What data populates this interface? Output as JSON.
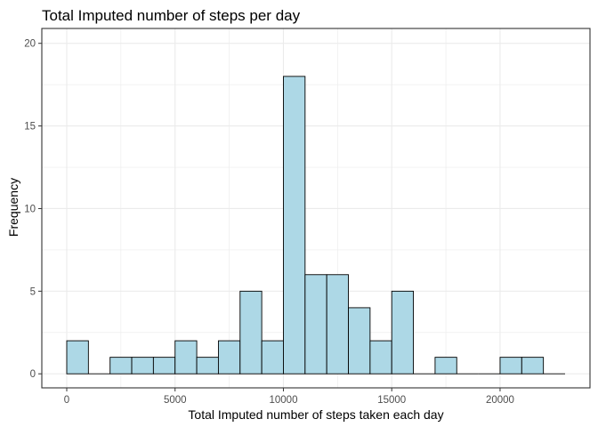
{
  "chart_data": {
    "type": "bar",
    "title": "Total Imputed number of steps per day",
    "xlabel": "Total Imputed number of steps taken each day",
    "ylabel": "Frequency",
    "xlim": [
      -1150,
      24150
    ],
    "ylim": [
      -0.85,
      20.9
    ],
    "x_ticks": [
      0,
      5000,
      10000,
      15000,
      20000
    ],
    "x_tick_labels": [
      "0",
      "5000",
      "10000",
      "15000",
      "20000"
    ],
    "y_ticks": [
      0,
      5,
      10,
      15,
      20
    ],
    "y_tick_labels": [
      "0",
      "5",
      "10",
      "15",
      "20"
    ],
    "bin_width": 1000,
    "bins": [
      {
        "start": 0,
        "end": 1000,
        "count": 2
      },
      {
        "start": 1000,
        "end": 2000,
        "count": 0
      },
      {
        "start": 2000,
        "end": 3000,
        "count": 1
      },
      {
        "start": 3000,
        "end": 4000,
        "count": 1
      },
      {
        "start": 4000,
        "end": 5000,
        "count": 1
      },
      {
        "start": 5000,
        "end": 6000,
        "count": 2
      },
      {
        "start": 6000,
        "end": 7000,
        "count": 1
      },
      {
        "start": 7000,
        "end": 8000,
        "count": 2
      },
      {
        "start": 8000,
        "end": 9000,
        "count": 5
      },
      {
        "start": 9000,
        "end": 10000,
        "count": 2
      },
      {
        "start": 10000,
        "end": 11000,
        "count": 18
      },
      {
        "start": 11000,
        "end": 12000,
        "count": 6
      },
      {
        "start": 12000,
        "end": 13000,
        "count": 6
      },
      {
        "start": 13000,
        "end": 14000,
        "count": 4
      },
      {
        "start": 14000,
        "end": 15000,
        "count": 2
      },
      {
        "start": 15000,
        "end": 16000,
        "count": 5
      },
      {
        "start": 16000,
        "end": 17000,
        "count": 0
      },
      {
        "start": 17000,
        "end": 18000,
        "count": 1
      },
      {
        "start": 18000,
        "end": 19000,
        "count": 0
      },
      {
        "start": 19000,
        "end": 20000,
        "count": 0
      },
      {
        "start": 20000,
        "end": 21000,
        "count": 1
      },
      {
        "start": 21000,
        "end": 22000,
        "count": 1
      },
      {
        "start": 22000,
        "end": 23000,
        "count": 0
      }
    ],
    "grid": true,
    "legend": "none",
    "colors": {
      "bar_fill": "#add8e6",
      "bar_stroke": "#000000",
      "grid": "#ebebeb",
      "panel_border": "#333333",
      "tick_text": "#4d4d4d"
    }
  }
}
